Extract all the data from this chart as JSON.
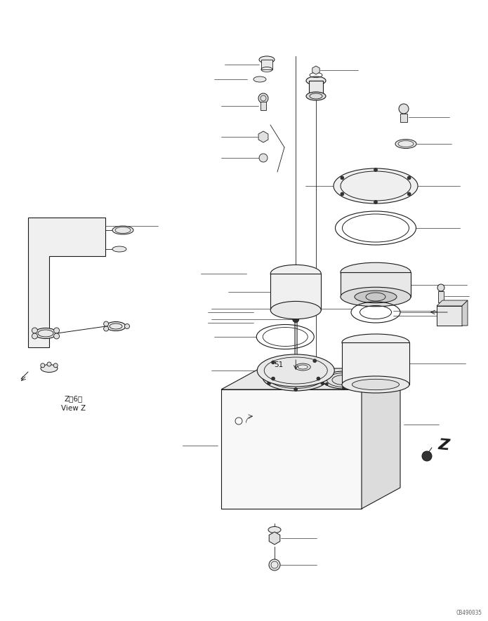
{
  "bg_color": "#ffffff",
  "line_color": "#1a1a1a",
  "figsize": [
    6.95,
    8.85
  ],
  "dpi": 100,
  "watermark": "CB490035",
  "label_51": "51",
  "label_Z": "Z",
  "view_z_line1": "Z覙6図",
  "view_z_line2": "View Z"
}
